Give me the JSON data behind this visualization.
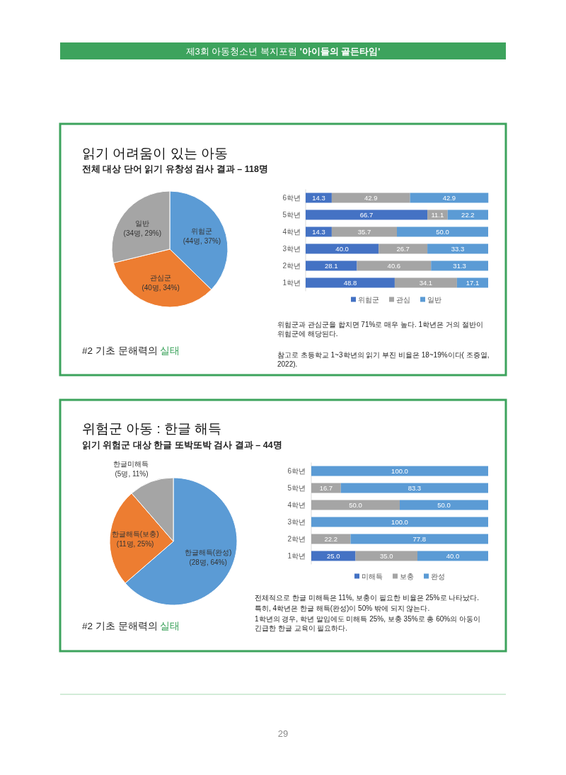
{
  "chart_data": [
    {
      "type": "pie",
      "title": "읽기 어려움이 있는 아동",
      "subtitle": "전체 대상 단어 읽기 유창성 검사 결과 – 118명",
      "categories": [
        "위험군",
        "관심군",
        "일반"
      ],
      "values": [
        44,
        40,
        34
      ],
      "value_labels": [
        "(44명, 37%)",
        "(40명, 34%)",
        "(34명, 29%)"
      ],
      "colors": [
        "#5b9bd5",
        "#ed7d31",
        "#a5a5a5"
      ],
      "annotations": [
        "제3회 아동청소년 복지포럼 '아이들의 골든타임'",
        "#2 기초 문해력의 실태"
      ]
    },
    {
      "type": "bar",
      "orientation": "horizontal",
      "stacked": true,
      "categories": [
        "6학년",
        "5학년",
        "4학년",
        "3학년",
        "2학년",
        "1학년"
      ],
      "xlim": [
        0,
        100
      ],
      "tick_labels": "y",
      "legend": "bottom",
      "series": [
        {
          "name": "위험군",
          "color": "#4472c4",
          "values": [
            14.3,
            66.7,
            14.3,
            40.0,
            28.1,
            48.8
          ],
          "value_labels": [
            "14.3",
            "66.7",
            "14.3",
            "40.0",
            "28.1",
            "48.8"
          ]
        },
        {
          "name": "관심",
          "color": "#a5a5a5",
          "values": [
            42.9,
            11.1,
            35.7,
            26.7,
            40.6,
            34.1
          ],
          "value_labels": [
            "42.9",
            "11.1",
            "35.7",
            "26.7",
            "40.6",
            "34.1"
          ]
        },
        {
          "name": "일반",
          "color": "#5b9bd5",
          "values": [
            42.9,
            22.2,
            50.0,
            33.3,
            31.3,
            17.1
          ],
          "value_labels": [
            "42.9",
            "22.2",
            "50.0",
            "33.3",
            "31.3",
            "17.1"
          ]
        }
      ],
      "annotations": [
        "위험군과 관심군을 합치면 71%로 매우 높다. 1학년은 거의 절반이 위험군에 해당된다.",
        "참고로 초등학교 1~3학년의 읽기 부진 비율은 18~19%이다( 조증열, 2022)."
      ]
    },
    {
      "type": "pie",
      "title": "위험군 아동 : 한글 해득",
      "subtitle": "읽기 위험군 대상 한글 또박또박 검사 결과 – 44명",
      "categories": [
        "한글해득(완성)",
        "한글해득(보충)",
        "한글미해득"
      ],
      "values": [
        28,
        11,
        5
      ],
      "value_labels": [
        "(28명, 64%)",
        "(11명, 25%)",
        "(5명, 11%)"
      ],
      "colors": [
        "#5b9bd5",
        "#ed7d31",
        "#a5a5a5"
      ],
      "annotations": [
        "#2 기초 문해력의 실태"
      ]
    },
    {
      "type": "bar",
      "orientation": "horizontal",
      "stacked": true,
      "categories": [
        "6학년",
        "5학년",
        "4학년",
        "3학년",
        "2학년",
        "1학년"
      ],
      "xlim": [
        0,
        100
      ],
      "tick_labels": "y",
      "legend": "bottom",
      "series": [
        {
          "name": "미해득",
          "color": "#4472c4",
          "values": [
            null,
            null,
            null,
            null,
            null,
            25.0
          ],
          "value_labels": [
            null,
            null,
            null,
            null,
            null,
            "25.0"
          ]
        },
        {
          "name": "보충",
          "color": "#a5a5a5",
          "values": [
            null,
            16.7,
            50.0,
            null,
            22.2,
            35.0
          ],
          "value_labels": [
            null,
            "16.7",
            "50.0",
            null,
            "22.2",
            "35.0"
          ]
        },
        {
          "name": "완성",
          "color": "#5b9bd5",
          "values": [
            100.0,
            83.3,
            50.0,
            100.0,
            77.8,
            40.0
          ],
          "value_labels": [
            "100.0",
            "83.3",
            "50.0",
            "100.0",
            "77.8",
            "40.0"
          ]
        }
      ],
      "annotations": [
        "전체적으로 한글 미해득은 11%, 보충이 필요한 비율은 25%로 나타났다.",
        "특히, 4학년은 한글 해득(완성)이 50% 밖에 되지 않는다.",
        "1학년의 경우, 학년 말임에도 미해득 25%, 보충 35%로 총 60%의 아동이 긴급한 한글 교육이 필요하다.",
        "29"
      ]
    }
  ]
}
